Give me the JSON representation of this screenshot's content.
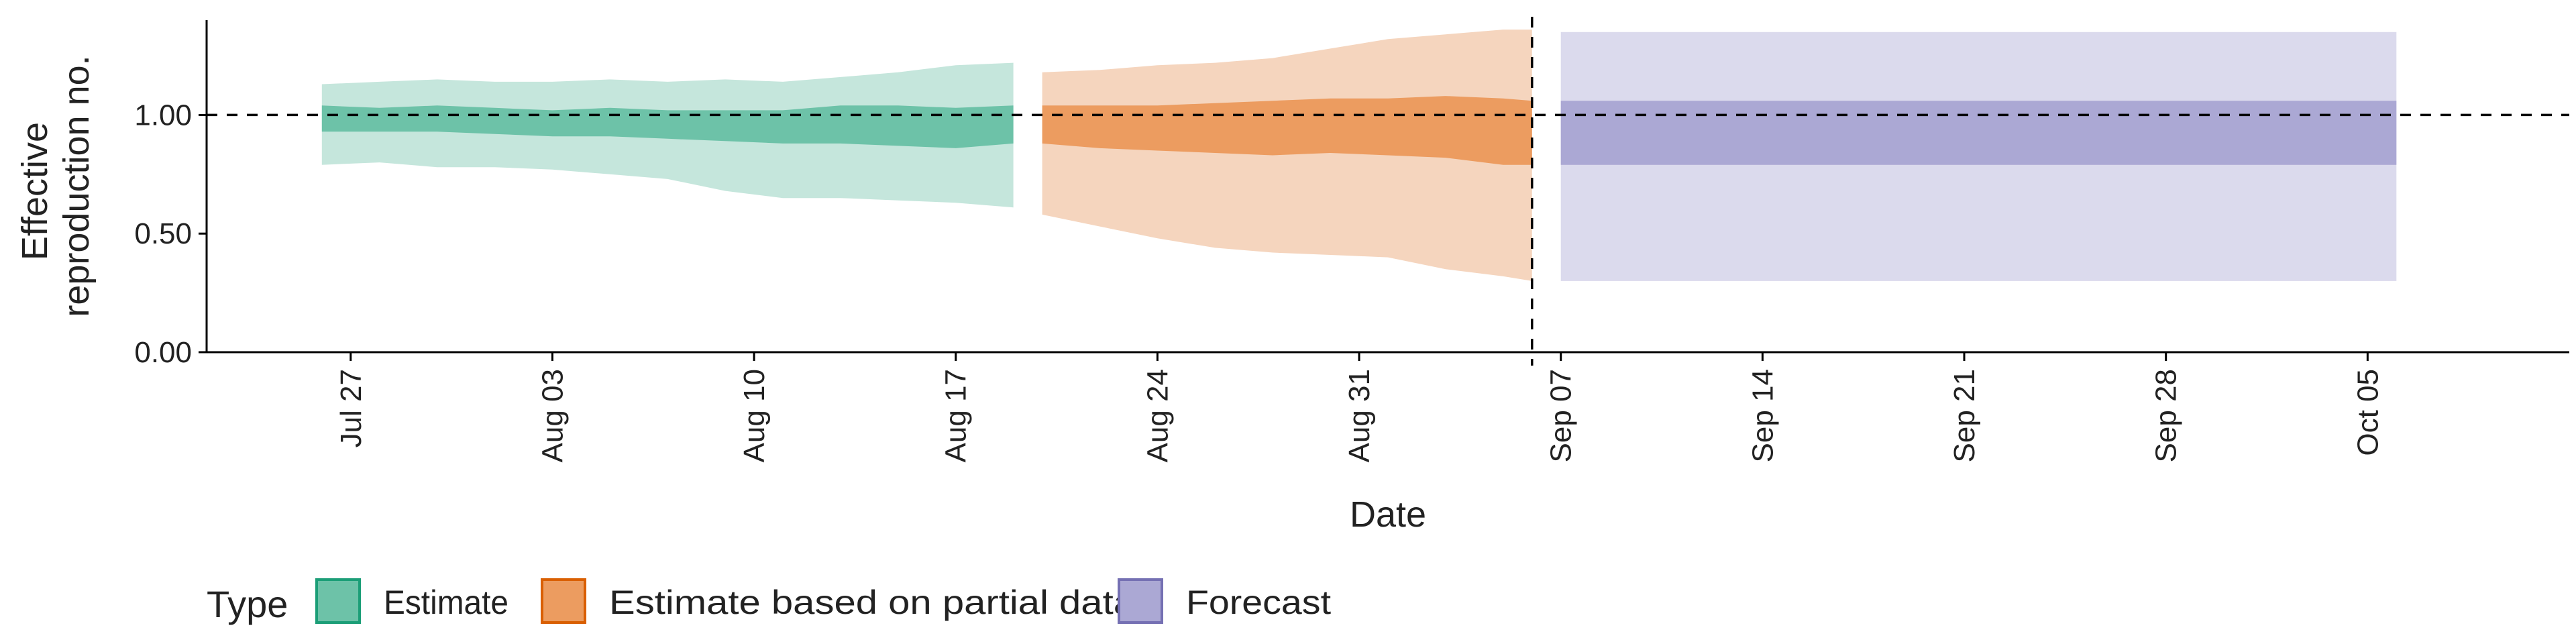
{
  "chart_data": {
    "type": "area",
    "title": "",
    "xlabel": "Date",
    "ylabel_lines": [
      "Effective",
      "reproduction no."
    ],
    "ylim": [
      0,
      1.4
    ],
    "xlim": [
      "2020-07-22",
      "2020-10-12"
    ],
    "y_ticks": [
      0,
      0.5,
      1.0
    ],
    "y_tick_labels": [
      "0.00",
      "0.50",
      "1.00"
    ],
    "x_ticks": [
      "2020-07-27",
      "2020-08-03",
      "2020-08-10",
      "2020-08-17",
      "2020-08-24",
      "2020-08-31",
      "2020-09-07",
      "2020-09-14",
      "2020-09-21",
      "2020-09-28",
      "2020-10-05"
    ],
    "x_tick_labels": [
      "Jul 27",
      "Aug 03",
      "Aug 10",
      "Aug 17",
      "Aug 24",
      "Aug 31",
      "Sep 07",
      "Sep 14",
      "Sep 21",
      "Sep 28",
      "Oct 05"
    ],
    "reference_line_y": 1.0,
    "reference_line_date": "2020-09-06",
    "grid": false,
    "legend": {
      "title": "Type",
      "position": "bottom-left",
      "entries": [
        {
          "label": "Estimate",
          "fill": "#6dc2a8",
          "stroke": "#1b9e77"
        },
        {
          "label": "Estimate based on partial data",
          "fill": "#ec9c60",
          "stroke": "#d95f02"
        },
        {
          "label": "Forecast",
          "fill": "#aba8d4",
          "stroke": "#7570b3"
        }
      ]
    },
    "series": [
      {
        "name": "Estimate",
        "outer_color": "#c5e6dc",
        "inner_color": "#6dc2a8",
        "dates": [
          "2020-07-26",
          "2020-07-28",
          "2020-07-30",
          "2020-08-01",
          "2020-08-03",
          "2020-08-05",
          "2020-08-07",
          "2020-08-09",
          "2020-08-11",
          "2020-08-13",
          "2020-08-15",
          "2020-08-17",
          "2020-08-19"
        ],
        "outer_lower": [
          0.79,
          0.8,
          0.78,
          0.78,
          0.77,
          0.75,
          0.73,
          0.68,
          0.65,
          0.65,
          0.64,
          0.63,
          0.61
        ],
        "outer_upper": [
          1.13,
          1.14,
          1.15,
          1.14,
          1.14,
          1.15,
          1.14,
          1.15,
          1.14,
          1.16,
          1.18,
          1.21,
          1.22
        ],
        "inner_lower": [
          0.93,
          0.93,
          0.93,
          0.92,
          0.91,
          0.91,
          0.9,
          0.89,
          0.88,
          0.88,
          0.87,
          0.86,
          0.88
        ],
        "inner_upper": [
          1.04,
          1.03,
          1.04,
          1.03,
          1.02,
          1.03,
          1.02,
          1.02,
          1.02,
          1.04,
          1.04,
          1.03,
          1.04
        ]
      },
      {
        "name": "Estimate based on partial data",
        "outer_color": "#f5d5be",
        "inner_color": "#ec9c60",
        "dates": [
          "2020-08-20",
          "2020-08-22",
          "2020-08-24",
          "2020-08-26",
          "2020-08-28",
          "2020-08-30",
          "2020-09-01",
          "2020-09-03",
          "2020-09-05",
          "2020-09-06"
        ],
        "outer_lower": [
          0.58,
          0.53,
          0.48,
          0.44,
          0.42,
          0.41,
          0.4,
          0.35,
          0.32,
          0.3
        ],
        "outer_upper": [
          1.18,
          1.19,
          1.21,
          1.22,
          1.24,
          1.28,
          1.32,
          1.34,
          1.36,
          1.36
        ],
        "inner_lower": [
          0.88,
          0.86,
          0.85,
          0.84,
          0.83,
          0.84,
          0.83,
          0.82,
          0.79,
          0.79
        ],
        "inner_upper": [
          1.04,
          1.04,
          1.04,
          1.05,
          1.06,
          1.07,
          1.07,
          1.08,
          1.07,
          1.06
        ]
      },
      {
        "name": "Forecast",
        "outer_color": "#dbdaed",
        "inner_color": "#aba8d4",
        "dates": [
          "2020-09-07",
          "2020-10-06"
        ],
        "outer_lower": [
          0.3,
          0.3
        ],
        "outer_upper": [
          1.35,
          1.35
        ],
        "inner_lower": [
          0.79,
          0.79
        ],
        "inner_upper": [
          1.06,
          1.06
        ]
      }
    ]
  }
}
